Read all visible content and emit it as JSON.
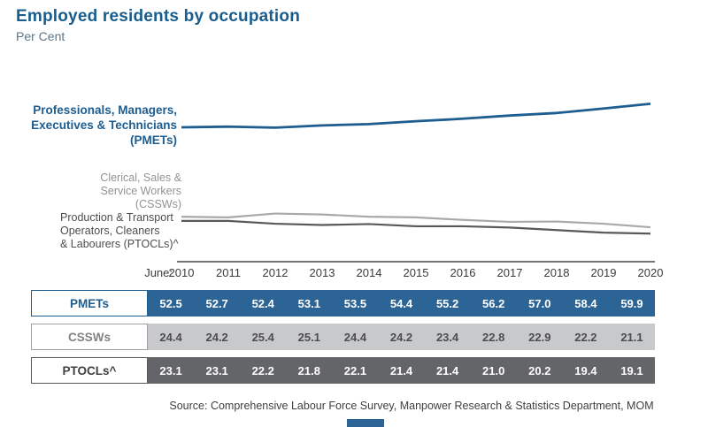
{
  "header": {
    "title": "Employed residents by occupation",
    "subtitle": "Per Cent"
  },
  "chart_data": {
    "type": "line",
    "title": "Employed residents by occupation",
    "ylabel": "Per Cent",
    "x_axis_label": "June:",
    "x": [
      2010,
      2011,
      2012,
      2013,
      2014,
      2015,
      2016,
      2017,
      2018,
      2019,
      2020
    ],
    "ylim": [
      15,
      65
    ],
    "grid": false,
    "legend_position": "left-annotations",
    "series": [
      {
        "name": "PMETs",
        "label": "Professionals, Managers,\nExecutives & Technicians\n(PMETs)",
        "color": "#1d5d90",
        "values": [
          52.5,
          52.7,
          52.4,
          53.1,
          53.5,
          54.4,
          55.2,
          56.2,
          57.0,
          58.4,
          59.9
        ],
        "table": {
          "bg": "#2d6496",
          "text": "#ffffff",
          "label_color": "#1d5d90",
          "label_border": "#1d5d90"
        }
      },
      {
        "name": "CSSWs",
        "label": "Clerical, Sales &\nService Workers\n(CSSWs)",
        "color": "#a7a9ac",
        "values": [
          24.4,
          24.2,
          25.4,
          25.1,
          24.4,
          24.2,
          23.4,
          22.8,
          22.9,
          22.2,
          21.1
        ],
        "table": {
          "bg": "#c8c9cb",
          "text": "#4d4d4f",
          "label_color": "#808285",
          "label_border": "#9d9fa2"
        }
      },
      {
        "name": "PTOCLs^",
        "label": "Production & Transport\nOperators, Cleaners\n& Labourers (PTOCLs)^",
        "color": "#58595b",
        "values": [
          23.1,
          23.1,
          22.2,
          21.8,
          22.1,
          21.4,
          21.4,
          21.0,
          20.2,
          19.4,
          19.1
        ],
        "table": {
          "bg": "#646569",
          "text": "#ffffff",
          "label_color": "#404042",
          "label_border": "#58595b"
        }
      }
    ]
  },
  "source": "Source: Comprehensive Labour Force Survey, Manpower Research & Statistics Department, MOM",
  "accent_color": "#2d6496"
}
